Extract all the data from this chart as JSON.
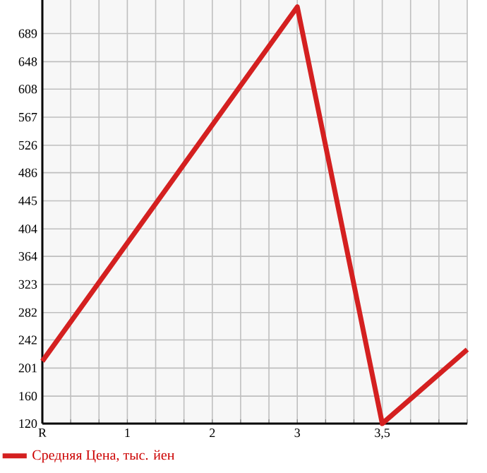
{
  "chart_data": {
    "type": "line",
    "categories": [
      "R",
      "1",
      "2",
      "3",
      "3,5",
      null
    ],
    "series": [
      {
        "name": "Средняя Цена, тыс. йен",
        "color": "#d42020",
        "values": [
          211,
          null,
          null,
          728,
          120,
          228
        ]
      }
    ],
    "ylim": [
      120,
      738
    ],
    "yticks": [
      120,
      160,
      201,
      242,
      282,
      323,
      364,
      404,
      445,
      486,
      526,
      567,
      608,
      648,
      689
    ],
    "grid": true,
    "legend": "bottom",
    "marker": "none",
    "line_style": "solid"
  }
}
